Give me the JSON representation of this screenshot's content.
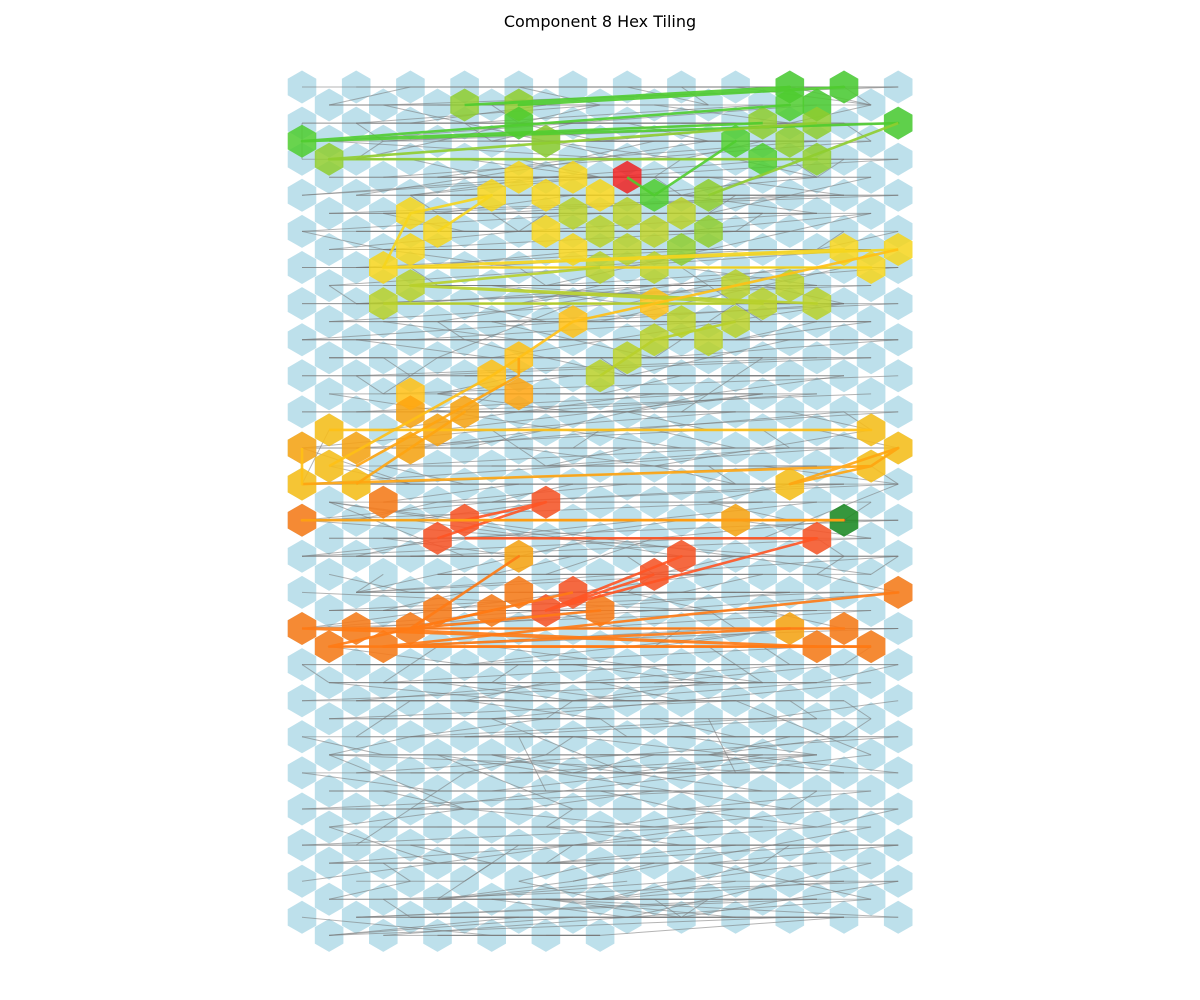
{
  "title": "Component 8 Hex Tiling",
  "grid": {
    "columns": 23,
    "rows": 24,
    "last_row_partial_length": 12,
    "base_color": "#add8e6",
    "edge_color": "#777777"
  },
  "colors": {
    "green": "#4fcc2f",
    "lime": "#8fcd2f",
    "yellowgreen": "#b8d02a",
    "yellow": "#f6d51c",
    "gold": "#ffc015",
    "orange": "#ffa40f",
    "darkorange": "#ff7a14",
    "redorange": "#ff5423",
    "red": "#ee2222",
    "darkgreen": "#1f8a1f"
  },
  "highlighted_cells": [
    {
      "row": 0,
      "col": 18,
      "c": "green"
    },
    {
      "row": 0,
      "col": 20,
      "c": "green"
    },
    {
      "row": 1,
      "col": 6,
      "c": "lime"
    },
    {
      "row": 1,
      "col": 8,
      "c": "lime"
    },
    {
      "row": 1,
      "col": 18,
      "c": "green"
    },
    {
      "row": 1,
      "col": 19,
      "c": "green"
    },
    {
      "row": 2,
      "col": 8,
      "c": "green"
    },
    {
      "row": 2,
      "col": 17,
      "c": "lime"
    },
    {
      "row": 2,
      "col": 19,
      "c": "lime"
    },
    {
      "row": 2,
      "col": 22,
      "c": "green"
    },
    {
      "row": 3,
      "col": 0,
      "c": "green"
    },
    {
      "row": 3,
      "col": 9,
      "c": "lime"
    },
    {
      "row": 3,
      "col": 16,
      "c": "green"
    },
    {
      "row": 3,
      "col": 18,
      "c": "lime"
    },
    {
      "row": 4,
      "col": 1,
      "c": "lime"
    },
    {
      "row": 4,
      "col": 17,
      "c": "green"
    },
    {
      "row": 4,
      "col": 19,
      "c": "lime"
    },
    {
      "row": 5,
      "col": 8,
      "c": "yellow"
    },
    {
      "row": 5,
      "col": 10,
      "c": "yellow"
    },
    {
      "row": 5,
      "col": 12,
      "c": "red"
    },
    {
      "row": 6,
      "col": 7,
      "c": "yellow"
    },
    {
      "row": 6,
      "col": 9,
      "c": "yellow"
    },
    {
      "row": 6,
      "col": 11,
      "c": "yellow"
    },
    {
      "row": 6,
      "col": 13,
      "c": "green"
    },
    {
      "row": 6,
      "col": 15,
      "c": "lime"
    },
    {
      "row": 7,
      "col": 4,
      "c": "yellow"
    },
    {
      "row": 7,
      "col": 10,
      "c": "yellowgreen"
    },
    {
      "row": 7,
      "col": 12,
      "c": "yellowgreen"
    },
    {
      "row": 7,
      "col": 14,
      "c": "yellowgreen"
    },
    {
      "row": 8,
      "col": 5,
      "c": "yellow"
    },
    {
      "row": 8,
      "col": 9,
      "c": "yellow"
    },
    {
      "row": 8,
      "col": 11,
      "c": "yellowgreen"
    },
    {
      "row": 8,
      "col": 13,
      "c": "yellowgreen"
    },
    {
      "row": 8,
      "col": 15,
      "c": "lime"
    },
    {
      "row": 9,
      "col": 4,
      "c": "yellow"
    },
    {
      "row": 9,
      "col": 10,
      "c": "yellow"
    },
    {
      "row": 9,
      "col": 12,
      "c": "yellowgreen"
    },
    {
      "row": 9,
      "col": 14,
      "c": "lime"
    },
    {
      "row": 9,
      "col": 20,
      "c": "yellow"
    },
    {
      "row": 9,
      "col": 22,
      "c": "yellow"
    },
    {
      "row": 10,
      "col": 3,
      "c": "yellow"
    },
    {
      "row": 10,
      "col": 11,
      "c": "yellowgreen"
    },
    {
      "row": 10,
      "col": 13,
      "c": "yellowgreen"
    },
    {
      "row": 10,
      "col": 21,
      "c": "yellow"
    },
    {
      "row": 11,
      "col": 4,
      "c": "yellowgreen"
    },
    {
      "row": 11,
      "col": 16,
      "c": "yellowgreen"
    },
    {
      "row": 11,
      "col": 18,
      "c": "yellowgreen"
    },
    {
      "row": 12,
      "col": 3,
      "c": "yellowgreen"
    },
    {
      "row": 12,
      "col": 13,
      "c": "gold"
    },
    {
      "row": 12,
      "col": 17,
      "c": "yellowgreen"
    },
    {
      "row": 12,
      "col": 19,
      "c": "yellowgreen"
    },
    {
      "row": 13,
      "col": 10,
      "c": "gold"
    },
    {
      "row": 13,
      "col": 14,
      "c": "yellowgreen"
    },
    {
      "row": 13,
      "col": 16,
      "c": "yellowgreen"
    },
    {
      "row": 14,
      "col": 13,
      "c": "yellowgreen"
    },
    {
      "row": 14,
      "col": 15,
      "c": "yellowgreen"
    },
    {
      "row": 15,
      "col": 8,
      "c": "gold"
    },
    {
      "row": 15,
      "col": 12,
      "c": "yellowgreen"
    },
    {
      "row": 16,
      "col": 7,
      "c": "gold"
    },
    {
      "row": 16,
      "col": 11,
      "c": "yellowgreen"
    },
    {
      "row": 17,
      "col": 4,
      "c": "gold"
    },
    {
      "row": 17,
      "col": 8,
      "c": "orange"
    },
    {
      "row": 18,
      "col": 4,
      "c": "orange"
    },
    {
      "row": 18,
      "col": 6,
      "c": "orange"
    },
    {
      "row": 19,
      "col": 1,
      "c": "gold"
    },
    {
      "row": 19,
      "col": 5,
      "c": "orange"
    },
    {
      "row": 19,
      "col": 21,
      "c": "gold"
    },
    {
      "row": 20,
      "col": 0,
      "c": "orange"
    },
    {
      "row": 20,
      "col": 2,
      "c": "orange"
    },
    {
      "row": 20,
      "col": 4,
      "c": "orange"
    },
    {
      "row": 20,
      "col": 22,
      "c": "gold"
    },
    {
      "row": 21,
      "col": 1,
      "c": "gold"
    },
    {
      "row": 21,
      "col": 21,
      "c": "gold"
    },
    {
      "row": 22,
      "col": 0,
      "c": "gold"
    },
    {
      "row": 22,
      "col": 2,
      "c": "gold"
    },
    {
      "row": 22,
      "col": 18,
      "c": "gold"
    },
    {
      "row": 23,
      "col": 3,
      "c": "darkorange"
    },
    {
      "row": 23,
      "col": 9,
      "c": "redorange"
    },
    {
      "row": 24,
      "col": 0,
      "c": "darkorange"
    },
    {
      "row": 24,
      "col": 6,
      "c": "redorange"
    },
    {
      "row": 24,
      "col": 16,
      "c": "orange"
    },
    {
      "row": 24,
      "col": 20,
      "c": "darkgreen"
    },
    {
      "row": 25,
      "col": 5,
      "c": "redorange"
    },
    {
      "row": 25,
      "col": 19,
      "c": "redorange"
    },
    {
      "row": 26,
      "col": 8,
      "c": "orange"
    },
    {
      "row": 26,
      "col": 14,
      "c": "redorange"
    },
    {
      "row": 27,
      "col": 13,
      "c": "redorange"
    },
    {
      "row": 28,
      "col": 8,
      "c": "darkorange"
    },
    {
      "row": 28,
      "col": 10,
      "c": "redorange"
    },
    {
      "row": 28,
      "col": 22,
      "c": "darkorange"
    },
    {
      "row": 29,
      "col": 5,
      "c": "darkorange"
    },
    {
      "row": 29,
      "col": 7,
      "c": "darkorange"
    },
    {
      "row": 29,
      "col": 9,
      "c": "redorange"
    },
    {
      "row": 29,
      "col": 11,
      "c": "darkorange"
    },
    {
      "row": 30,
      "col": 0,
      "c": "darkorange"
    },
    {
      "row": 30,
      "col": 2,
      "c": "darkorange"
    },
    {
      "row": 30,
      "col": 4,
      "c": "darkorange"
    },
    {
      "row": 30,
      "col": 18,
      "c": "orange"
    },
    {
      "row": 30,
      "col": 20,
      "c": "darkorange"
    },
    {
      "row": 31,
      "col": 1,
      "c": "darkorange"
    },
    {
      "row": 31,
      "col": 3,
      "c": "darkorange"
    },
    {
      "row": 31,
      "col": 19,
      "c": "darkorange"
    },
    {
      "row": 31,
      "col": 21,
      "c": "darkorange"
    }
  ],
  "paths": [
    {
      "c": "green",
      "pts": [
        [
          1,
          6
        ],
        [
          0,
          18
        ],
        [
          1,
          8
        ],
        [
          0,
          20
        ],
        [
          1,
          6
        ]
      ]
    },
    {
      "c": "green",
      "pts": [
        [
          3,
          0
        ],
        [
          1,
          18
        ],
        [
          3,
          0
        ],
        [
          2,
          22
        ],
        [
          3,
          0
        ],
        [
          2,
          17
        ]
      ]
    },
    {
      "c": "lime",
      "pts": [
        [
          4,
          1
        ],
        [
          4,
          19
        ],
        [
          4,
          1
        ],
        [
          2,
          19
        ]
      ]
    },
    {
      "c": "green",
      "pts": [
        [
          6,
          13
        ],
        [
          3,
          16
        ],
        [
          6,
          13
        ],
        [
          5,
          12
        ]
      ]
    },
    {
      "c": "lime",
      "pts": [
        [
          6,
          15
        ],
        [
          2,
          22
        ]
      ]
    },
    {
      "c": "yellow",
      "pts": [
        [
          10,
          3
        ],
        [
          7,
          4
        ],
        [
          6,
          7
        ],
        [
          8,
          5
        ]
      ]
    },
    {
      "c": "yellow",
      "pts": [
        [
          10,
          3
        ],
        [
          9,
          20
        ],
        [
          10,
          3
        ],
        [
          10,
          21
        ],
        [
          10,
          3
        ],
        [
          9,
          22
        ]
      ]
    },
    {
      "c": "yellowgreen",
      "pts": [
        [
          11,
          4
        ],
        [
          12,
          17
        ],
        [
          11,
          4
        ],
        [
          12,
          19
        ],
        [
          11,
          4
        ],
        [
          10,
          11
        ]
      ]
    },
    {
      "c": "yellowgreen",
      "pts": [
        [
          12,
          3
        ],
        [
          12,
          16
        ]
      ]
    },
    {
      "c": "gold",
      "pts": [
        [
          15,
          8
        ],
        [
          13,
          10
        ],
        [
          12,
          13
        ],
        [
          9,
          22
        ]
      ]
    },
    {
      "c": "yellowgreen",
      "pts": [
        [
          16,
          11
        ],
        [
          14,
          13
        ],
        [
          13,
          16
        ]
      ]
    },
    {
      "c": "gold",
      "pts": [
        [
          21,
          1
        ],
        [
          16,
          7
        ],
        [
          15,
          8
        ]
      ]
    },
    {
      "c": "orange",
      "pts": [
        [
          21,
          2
        ],
        [
          16,
          8
        ],
        [
          15,
          8
        ]
      ]
    },
    {
      "c": "gold",
      "pts": [
        [
          19,
          1
        ],
        [
          19,
          21
        ],
        [
          19,
          1
        ]
      ]
    },
    {
      "c": "orange",
      "pts": [
        [
          22,
          0
        ],
        [
          21,
          21
        ],
        [
          20,
          22
        ],
        [
          22,
          18
        ],
        [
          21,
          21
        ]
      ]
    },
    {
      "c": "orange",
      "pts": [
        [
          22,
          2
        ],
        [
          18,
          6
        ],
        [
          19,
          5
        ],
        [
          22,
          2
        ]
      ]
    },
    {
      "c": "gold",
      "pts": [
        [
          20,
          0
        ],
        [
          22,
          0
        ],
        [
          20,
          0
        ]
      ]
    },
    {
      "c": "redorange",
      "pts": [
        [
          25,
          5
        ],
        [
          23,
          9
        ],
        [
          24,
          6
        ],
        [
          24,
          20
        ],
        [
          24,
          6
        ],
        [
          23,
          9
        ]
      ]
    },
    {
      "c": "redorange",
      "pts": [
        [
          25,
          6
        ],
        [
          25,
          19
        ]
      ]
    },
    {
      "c": "orange",
      "pts": [
        [
          24,
          0
        ],
        [
          24,
          16
        ],
        [
          24,
          0
        ],
        [
          24,
          20
        ]
      ]
    },
    {
      "c": "darkorange",
      "pts": [
        [
          31,
          3
        ],
        [
          28,
          22
        ],
        [
          31,
          3
        ],
        [
          30,
          18
        ],
        [
          31,
          3
        ],
        [
          31,
          21
        ]
      ]
    },
    {
      "c": "darkorange",
      "pts": [
        [
          30,
          4
        ],
        [
          26,
          8
        ],
        [
          30,
          4
        ],
        [
          29,
          11
        ],
        [
          30,
          4
        ],
        [
          28,
          10
        ]
      ]
    },
    {
      "c": "redorange",
      "pts": [
        [
          29,
          9
        ],
        [
          26,
          14
        ],
        [
          29,
          9
        ],
        [
          25,
          19
        ],
        [
          29,
          9
        ],
        [
          27,
          13
        ]
      ]
    },
    {
      "c": "darkorange",
      "pts": [
        [
          30,
          0
        ],
        [
          31,
          19
        ],
        [
          30,
          2
        ],
        [
          30,
          20
        ],
        [
          30,
          0
        ]
      ]
    },
    {
      "c": "darkorange",
      "pts": [
        [
          31,
          1
        ],
        [
          29,
          7
        ],
        [
          31,
          1
        ],
        [
          31,
          21
        ]
      ]
    }
  ]
}
